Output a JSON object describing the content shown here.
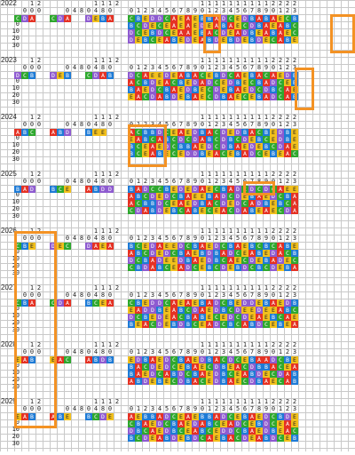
{
  "years": [
    {
      "label": "2022",
      "tag": "2022",
      "seq1": "CDA",
      "seq2": "CDA",
      "seq3": "DEBA",
      "rows": [
        "CBEDDCAEAEBBADCEDBABAECB",
        "BCDECEAEAEDEABAECDBAEABC",
        "DCEBDCEAAEBACDEADBEABAEC",
        "DEBCEABEDEABDEBDEBDECABE"
      ]
    },
    {
      "label": "2023",
      "tag": "2023",
      "seq1": "DCB",
      "seq2": "DEB",
      "seq3": "CDAB",
      "rows": [
        "DCAEEDEABACEBDCAEBACAEDB",
        "ACBDEACBEDADCEDBECBADCEB",
        "BAEDCBAEDBECDEBAEDCDBCAE",
        "EACDABDEBAECDBAECEBADCAB"
      ]
    },
    {
      "label": "2024",
      "tag": "2024",
      "seq1": "ABC",
      "seq2": "ABD",
      "seq3": "BEE",
      "rows": [
        "ACBBDCEAEDBACDEDBACBEDBE",
        "EABCABCDCDABCDBCDEBCEDBE",
        "BCEAEDCBBAEDCDBAEDEBCDAE",
        "BCEABECEDDBEACEBADCEBEAC"
      ]
    },
    {
      "label": "2025",
      "tag": "2025",
      "seq1": "BAD",
      "seq2": "BCE",
      "seq3": "ABDD",
      "rows": [
        "BADCCBEDEDAECBADCDCDCAEE",
        "ABCDEDCBAEEBADCDEBAEDCBA",
        "ACBBDCEAEDBACDEDCADBEBCA",
        "CDABDEBCABECEACDABEAECDA"
      ]
    },
    {
      "label": "2026",
      "tag": "2026",
      "seq1": "CBE",
      "seq2": "DEC",
      "seq3": "DAEA",
      "rows": [
        "BCEDAEEDCBAEDCBAEBCBCABE",
        "ABCDEDCBAEBDBADCEABEDACB",
        "DCBADEEDBAEDBCAECDEBADEC",
        "CBDABCEADCEBCDEBDCBCDEBA"
      ]
    },
    {
      "label": "2027",
      "tag": "2027",
      "seq1": "CBA",
      "seq2": "CDA",
      "seq3": "BCEA",
      "rows": [
        "CBEDDCAEAEBADCBEDDEBAEDB",
        "EADDBEABCDAEDBCDEEDEEABC",
        "DCBEDEACBABECEDCDEAEBCAE",
        "BEACDEBDBCEADCBCABDCEBEA"
      ]
    },
    {
      "label": "2028",
      "tag": "2028",
      "seq1": "EAB",
      "seq2": "EAC",
      "seq3": "ABDB",
      "rows": [
        "EDBAEDCBAEDBACDCEBAADCBE",
        "BACDEDCEBAECDBEACDBBACEA",
        "BAEDCABDCBAEDBCEABDECDAB",
        "ABDEBECDBACEDBAECDBAECAB"
      ]
    },
    {
      "label": "2029",
      "tag": "2029",
      "seq1": "EAB",
      "seq2": "ABE",
      "seq3": "BCDE",
      "rows": [
        "AEBBADCEAEBBADCEBAEDCBDE",
        "CBAEDCBAEDABCEADCEBDCEAE",
        "DBCAEDBCEABCEDDCBAEDBEAC",
        "BCDEABDEBDCAEBACDEABDCEB"
      ]
    }
  ],
  "headers": {
    "h1": [
      "1",
      "2"
    ],
    "h2": [
      "0",
      "0",
      "0"
    ],
    "h3": [
      "0",
      "4",
      "8",
      "0",
      "4",
      "8",
      "0"
    ],
    "h4top": [
      "1",
      "1",
      "1",
      "2"
    ],
    "h5": [
      "0",
      "1",
      "2",
      "3",
      "4",
      "5",
      "6",
      "7",
      "8",
      "9",
      "0",
      "1",
      "2",
      "3",
      "4",
      "5",
      "6",
      "7",
      "8",
      "9",
      "0",
      "1",
      "2",
      "3"
    ],
    "h5top": [
      "",
      "",
      "",
      "",
      "",
      "",
      "",
      "",
      "",
      "",
      "1",
      "1",
      "1",
      "1",
      "1",
      "1",
      "1",
      "1",
      "1",
      "1",
      "2",
      "2",
      "2",
      "2"
    ],
    "rowlabels": [
      "0",
      "10",
      "20",
      "30"
    ]
  },
  "colors": {
    "A": "#e53224",
    "B": "#1e7bd6",
    "C": "#2ea82e",
    "D": "#8e5bd0",
    "E": "#f2c01c",
    "highlight": "#f39224"
  }
}
